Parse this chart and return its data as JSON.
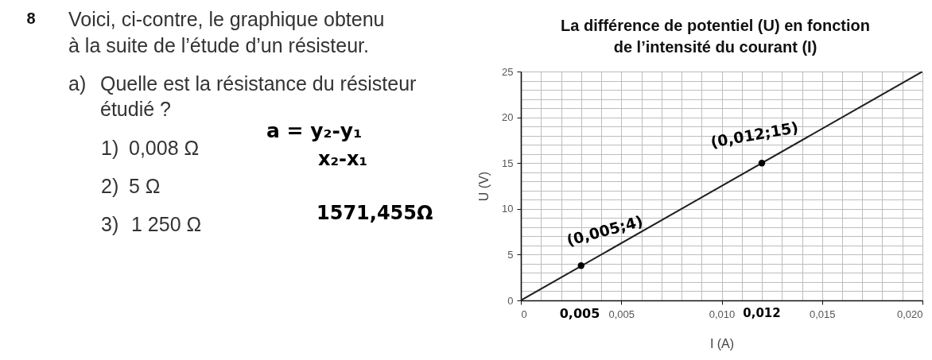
{
  "chart_data": {
    "type": "line",
    "title": "La différence de potentiel (U) en fonction de l’intensité du courant (I)",
    "xlabel": "I (A)",
    "ylabel": "U (V)",
    "xlim": [
      0,
      0.02
    ],
    "ylim": [
      0,
      25
    ],
    "xticks": [
      0,
      {
        "value": 0.001,
        "label": null
      },
      {
        "value": 0.002,
        "label": null
      },
      {
        "value": 0.003,
        "label": null
      },
      {
        "value": 0.004,
        "label": null
      },
      {
        "value": 0.005,
        "label": "0,005"
      },
      {
        "value": 0.006,
        "label": null
      },
      {
        "value": 0.007,
        "label": null
      },
      {
        "value": 0.008,
        "label": null
      },
      {
        "value": 0.009,
        "label": null
      },
      {
        "value": 0.01,
        "label": "0,010"
      },
      {
        "value": 0.011,
        "label": null
      },
      {
        "value": 0.012,
        "label": null
      },
      {
        "value": 0.013,
        "label": null
      },
      {
        "value": 0.014,
        "label": null
      },
      {
        "value": 0.015,
        "label": "0,015"
      },
      {
        "value": 0.016,
        "label": null
      },
      {
        "value": 0.017,
        "label": null
      },
      {
        "value": 0.018,
        "label": null
      },
      {
        "value": 0.019,
        "label": null
      },
      {
        "value": 0.02,
        "label": "0,020"
      }
    ],
    "yticks": [
      0,
      {
        "value": 1,
        "label": null
      },
      {
        "value": 2,
        "label": null
      },
      {
        "value": 3,
        "label": null
      },
      {
        "value": 4,
        "label": null
      },
      5,
      {
        "value": 6,
        "label": null
      },
      {
        "value": 7,
        "label": null
      },
      {
        "value": 8,
        "label": null
      },
      {
        "value": 9,
        "label": null
      },
      10,
      {
        "value": 11,
        "label": null
      },
      {
        "value": 12,
        "label": null
      },
      {
        "value": 13,
        "label": null
      },
      {
        "value": 14,
        "label": null
      },
      15,
      {
        "value": 16,
        "label": null
      },
      {
        "value": 17,
        "label": null
      },
      {
        "value": 18,
        "label": null
      },
      {
        "value": 19,
        "label": null
      },
      20,
      {
        "value": 21,
        "label": null
      },
      {
        "value": 22,
        "label": null
      },
      {
        "value": 23,
        "label": null
      },
      {
        "value": 24,
        "label": null
      },
      25
    ],
    "grid": true,
    "series": [
      {
        "x": [
          0,
          0.02
        ],
        "values": [
          0,
          25
        ],
        "color": "#231f20"
      },
      {
        "type": "scatter",
        "x": [
          0.003,
          0.012
        ],
        "values": [
          3.8,
          15
        ],
        "color": "#000000",
        "marker": "circle"
      }
    ],
    "annotations": [
      "8",
      "Voici, ci-contre, le graphique obtenu à la suite de l’étude d’un résisteur.",
      "a)",
      "Quelle est la résistance du résisteur étudié ?",
      "1)",
      "0,008 Ω",
      "2)",
      "5 Ω",
      "3)",
      "1 250 Ω",
      "a = y₂-y₁",
      "x₂-x₁",
      "1571,455Ω",
      "0,005",
      "0,012",
      {
        "text": "(0,005;4)",
        "x": 0.003,
        "y": 3.8
      },
      {
        "text": "(0,012;15)",
        "x": 0.012,
        "y": 15
      }
    ]
  }
}
